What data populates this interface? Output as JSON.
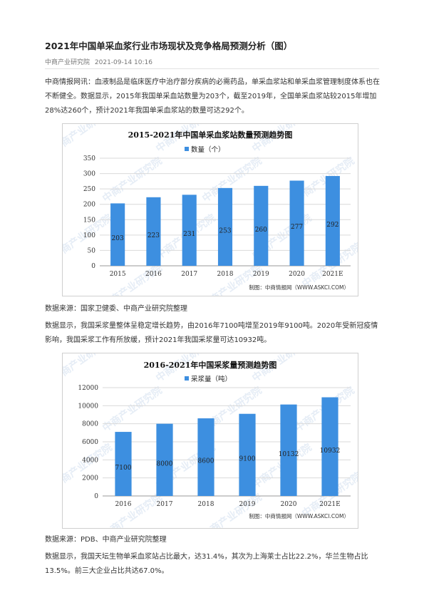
{
  "article": {
    "title": "2021年中国单采血浆行业市场现状及竞争格局预测分析（图）",
    "source": "中商产业研究院",
    "date": "2021-09-14 10:16",
    "paragraph1": "中商情报网讯：血液制品是临床医疗中治疗部分疾病的必需药品，单采血浆站和单采血浆管理制度体系也在不断健全。数据显示，2015年我国单采血站数量为203个，截至2019年，全国单采血浆站较2015年增加28%达260个，预计2021年我国单采血浆站的数量可达292个。",
    "source_note1": "数据来源：国家卫健委、中商产业研究院整理",
    "paragraph2": "数据显示，我国采浆量整体呈稳定增长趋势，由2016年7100吨增至2019年9100吨。2020年受新冠疫情影响，我国采浆工作有所放缓，预计2021年我国采浆量可达10932吨。",
    "source_note2": "数据来源：PDB、中商产业研究院整理",
    "paragraph3": "数据显示，我国天坛生物单采血浆站占比最大，达31.4%，其次为上海莱士占比22.2%，华兰生物占比13.5%。前三大企业占比共达67.0%。"
  },
  "colors": {
    "bar": "#3d8fe0",
    "grid": "#d9d9d9",
    "axis": "#999999"
  },
  "watermark": "中商产业研究院",
  "chart_data": [
    {
      "type": "bar",
      "title": "2015-2021年中国单采血浆站数量预测趋势图",
      "categories": [
        "2015",
        "2016",
        "2017",
        "2018",
        "2019",
        "2020",
        "2021E"
      ],
      "series": [
        {
          "name": "数量（个）",
          "values": [
            203,
            223,
            231,
            253,
            260,
            277,
            292
          ]
        }
      ],
      "ylim": [
        0,
        350
      ],
      "yticks": [
        0,
        50,
        100,
        150,
        200,
        250,
        300,
        350
      ],
      "grid": true,
      "legend": "top-center",
      "credit": "制图：中商情报网（WWW.ASKCI.COM）"
    },
    {
      "type": "bar",
      "title": "2016-2021年中国采浆量预测趋势图",
      "categories": [
        "2016",
        "2017",
        "2018",
        "2019",
        "2020",
        "2021E"
      ],
      "series": [
        {
          "name": "采浆量（吨）",
          "values": [
            7100,
            8000,
            8600,
            9100,
            10132,
            10932
          ]
        }
      ],
      "ylim": [
        0,
        12000
      ],
      "yticks": [
        0,
        2000,
        4000,
        6000,
        8000,
        10000,
        12000
      ],
      "grid": true,
      "legend": "top-center",
      "credit": "制图：中商情报网（WWW.ASKCI.COM）"
    }
  ]
}
